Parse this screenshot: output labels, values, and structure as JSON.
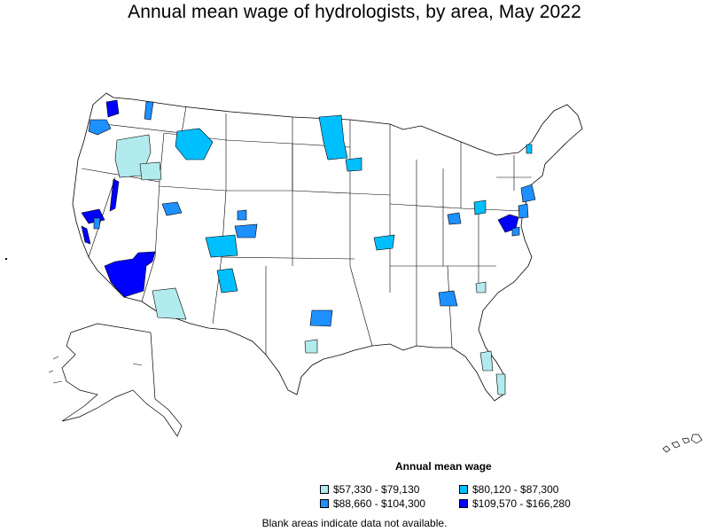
{
  "title": "Annual mean wage of hydrologists, by area, May 2022",
  "legend": {
    "title": "Annual mean wage",
    "items": [
      {
        "label": "$57,330 - $79,130",
        "color": "#b2ebee"
      },
      {
        "label": "$80,120 - $87,300",
        "color": "#00bfff"
      },
      {
        "label": "$88,660 - $104,300",
        "color": "#1e90ff"
      },
      {
        "label": "$109,570 - $166,280",
        "color": "#0000ff"
      }
    ]
  },
  "footnote": "Blank areas indicate data not available.",
  "colors": {
    "tier1": "#b2ebee",
    "tier2": "#00bfff",
    "tier3": "#1e90ff",
    "tier4": "#0000ff",
    "border": "#000000",
    "blank": "#ffffff"
  }
}
